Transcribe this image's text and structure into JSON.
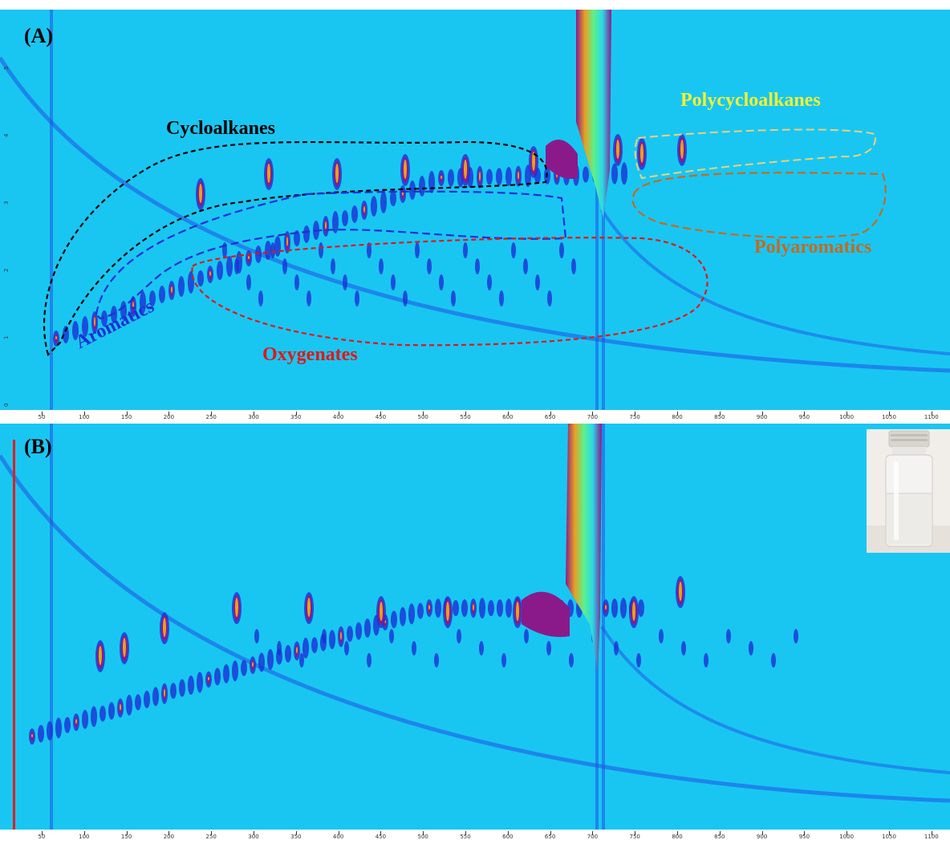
{
  "figure": {
    "panels": [
      {
        "label": "(A)"
      },
      {
        "label": "(B)"
      }
    ],
    "regions": [
      {
        "label": "Cycloalkanes",
        "color": "#000000"
      },
      {
        "label": "Aromatics",
        "color": "#1a2fd6"
      },
      {
        "label": "Oxygenates",
        "color": "#e01818"
      },
      {
        "label": "Polycycloalkanes",
        "color": "#f3f034"
      },
      {
        "label": "Polyaromatics",
        "color": "#c46a22"
      }
    ],
    "x_ticks_a": [
      "50",
      "100",
      "150",
      "200",
      "250",
      "300",
      "350",
      "400",
      "450",
      "500",
      "550",
      "600",
      "650",
      "700",
      "750",
      "800",
      "850",
      "900",
      "950",
      "1000",
      "1050",
      "1100"
    ],
    "x_ticks_b": [
      "50",
      "100",
      "150",
      "200",
      "250",
      "300",
      "350",
      "400",
      "450",
      "500",
      "550",
      "600",
      "650",
      "700",
      "750",
      "800",
      "850",
      "900",
      "950",
      "1000",
      "1050",
      "1100"
    ],
    "y_ticks_a": [
      "0",
      "1",
      "2",
      "3",
      "4",
      "5"
    ],
    "colors": {
      "background": "#19c6f2",
      "baseline": "#1f52e6",
      "peak_low": "#1a2fd6",
      "peak_mid": "#8a1a8a",
      "peak_high": "#e8a020",
      "peak_top": "#5df08a"
    }
  },
  "chart_data": [
    {
      "type": "heatmap",
      "panel": "(A)",
      "x": [
        50,
        100,
        150,
        200,
        250,
        300,
        350,
        400,
        450,
        500,
        550,
        600,
        650,
        700,
        750,
        800,
        850,
        900,
        950,
        1000,
        1050,
        1100
      ],
      "y_ticks": [
        0,
        1,
        2,
        3,
        4,
        5
      ],
      "annotated_regions": [
        "Cycloalkanes",
        "Aromatics",
        "Oxygenates",
        "Polycycloalkanes",
        "Polyaromatics"
      ]
    },
    {
      "type": "heatmap",
      "panel": "(B)",
      "x": [
        50,
        100,
        150,
        200,
        250,
        300,
        350,
        400,
        450,
        500,
        550,
        600,
        650,
        700,
        750,
        800,
        850,
        900,
        950,
        1000,
        1050,
        1100
      ]
    }
  ]
}
